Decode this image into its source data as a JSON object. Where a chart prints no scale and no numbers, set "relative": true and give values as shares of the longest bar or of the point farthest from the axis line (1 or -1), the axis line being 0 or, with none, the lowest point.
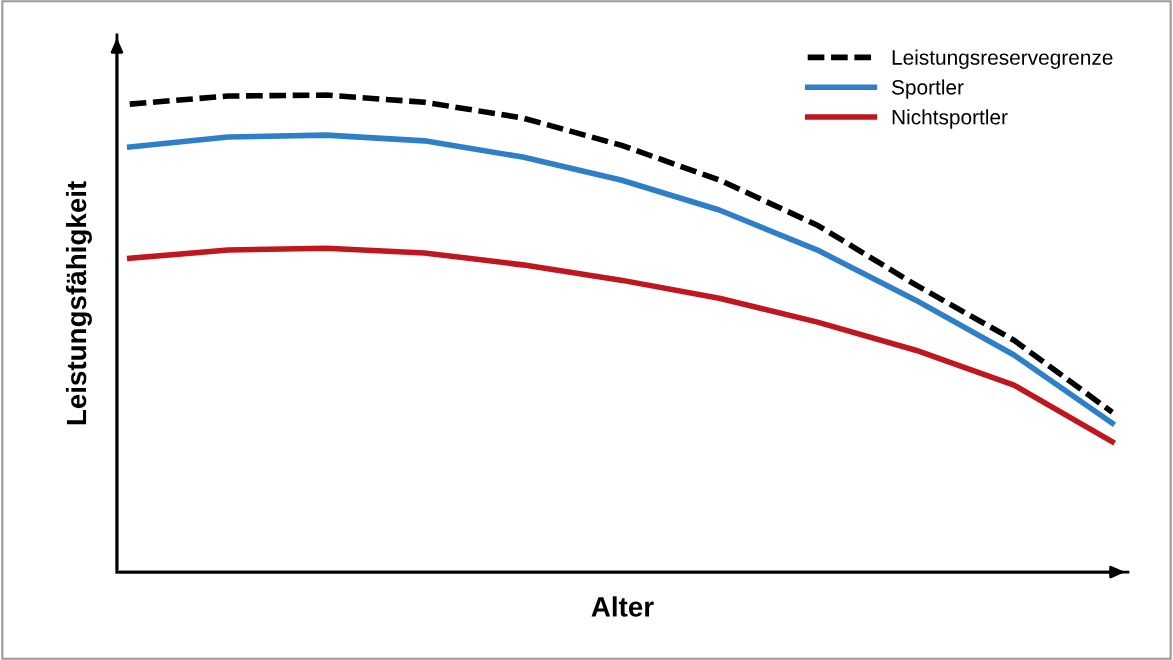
{
  "chart_data": {
    "type": "line",
    "relative": true,
    "xlabel": "Alter",
    "ylabel": "Leistungsfähigkeit",
    "legend": "top right",
    "grid": false,
    "categories": [
      null,
      null,
      null,
      null,
      null,
      null,
      null,
      null,
      null,
      null,
      null
    ],
    "series": [
      {
        "name": "Leistungsreservegrenze",
        "color": "#000000",
        "line_style": "dashed",
        "values": [
          0.981,
          0.998,
          1,
          0.985,
          0.952,
          0.895,
          0.822,
          0.727,
          0.602,
          0.486,
          0.335
        ]
      },
      {
        "name": "Sportler",
        "color": "#2e7fc7",
        "line_style": "solid",
        "values": [
          0.891,
          0.912,
          0.916,
          0.904,
          0.87,
          0.822,
          0.759,
          0.675,
          0.57,
          0.455,
          0.312
        ]
      },
      {
        "name": "Nichtsportler",
        "color": "#c0161e",
        "line_style": "solid",
        "values": [
          0.658,
          0.675,
          0.679,
          0.669,
          0.644,
          0.612,
          0.574,
          0.524,
          0.465,
          0.392,
          0.273
        ]
      }
    ]
  }
}
